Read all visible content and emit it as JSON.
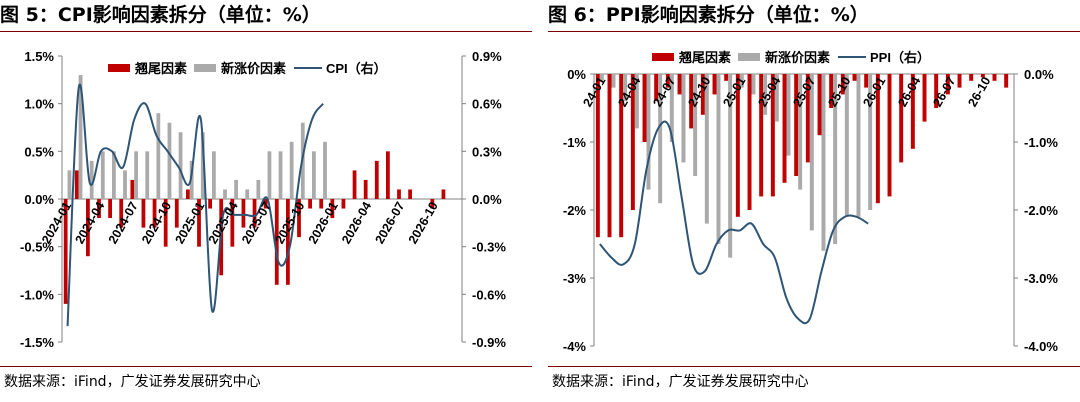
{
  "colors": {
    "title_rule": "#7a0000",
    "carryover": "#c00000",
    "new_factor": "#aaaaaa",
    "line": "#2e5576",
    "axis": "#808080"
  },
  "charts": [
    {
      "title": "图 5：CPI影响因素拆分（单位：%）",
      "source": "数据来源：iFind，广发证券发展研究中心",
      "legend": [
        "翘尾因素",
        "新涨价因素",
        "CPI（右）"
      ]
    },
    {
      "title": "图 6：PPI影响因素拆分（单位：%）",
      "source": "数据来源：iFind，广发证券发展研究中心",
      "legend": [
        "翘尾因素",
        "新涨价因素",
        "PPI（右）"
      ]
    }
  ],
  "chart_data": [
    {
      "type": "bar",
      "title": "图 5：CPI影响因素拆分（单位：%）",
      "categories": [
        "2024-01",
        "2024-02",
        "2024-03",
        "2024-04",
        "2024-05",
        "2024-06",
        "2024-07",
        "2024-08",
        "2024-09",
        "2024-10",
        "2024-11",
        "2024-12",
        "2025-01",
        "2025-02",
        "2025-03",
        "2025-04",
        "2025-05",
        "2025-06",
        "2025-07",
        "2025-08",
        "2025-09",
        "2025-10",
        "2025-11",
        "2025-12",
        "2026-01",
        "2026-02",
        "2026-03",
        "2026-04",
        "2026-05",
        "2026-06",
        "2026-07",
        "2026-08",
        "2026-09",
        "2026-10",
        "2026-11",
        "2026-12"
      ],
      "tick_labels": [
        "2024-01",
        "2024-04",
        "2024-07",
        "2024-10",
        "2025-01",
        "2025-04",
        "2025-07",
        "2025-10",
        "2026-01",
        "2026-04",
        "2026-07",
        "2026-10"
      ],
      "tick_every": 3,
      "series": [
        {
          "name": "翘尾因素",
          "type": "bar",
          "axis": "left",
          "color": "#c00000",
          "values": [
            -1.1,
            0.3,
            -0.6,
            -0.2,
            -0.2,
            -0.3,
            0.2,
            -0.3,
            -0.3,
            -0.5,
            -0.3,
            0.1,
            -0.5,
            -0.1,
            -0.8,
            -0.5,
            -0.3,
            -0.3,
            -0.1,
            -0.9,
            -0.9,
            -0.4,
            -0.1,
            -0.1,
            -0.2,
            -0.1,
            0.3,
            0.2,
            0.4,
            0.5,
            0.1,
            0.1,
            0.0,
            -0.1,
            0.1,
            0.0
          ]
        },
        {
          "name": "新涨价因素",
          "type": "bar",
          "axis": "left",
          "color": "#aaaaaa",
          "values": [
            0.3,
            1.3,
            0.4,
            0.5,
            0.5,
            0.3,
            0.5,
            0.5,
            0.9,
            0.8,
            0.7,
            0.4,
            0.7,
            0.5,
            0.1,
            0.2,
            0.1,
            0.2,
            0.5,
            0.5,
            0.6,
            0.8,
            0.5,
            0.6,
            null,
            null,
            null,
            null,
            null,
            null,
            null,
            null,
            null,
            null,
            null,
            null
          ]
        },
        {
          "name": "CPI（右）",
          "type": "line",
          "axis": "right",
          "color": "#2e5576",
          "values": [
            -0.8,
            0.7,
            0.1,
            0.3,
            0.3,
            0.2,
            0.5,
            0.6,
            0.4,
            0.3,
            0.2,
            0.1,
            0.5,
            -0.7,
            -0.1,
            -0.1,
            -0.1,
            -0.1,
            0.0,
            -0.4,
            -0.3,
            0.2,
            0.5,
            0.6,
            null,
            null,
            null,
            null,
            null,
            null,
            null,
            null,
            null,
            null,
            null,
            null
          ]
        }
      ],
      "y_left": {
        "lim": [
          -1.5,
          1.5
        ],
        "ticks": [
          "-1.5%",
          "-1.0%",
          "-0.5%",
          "0.0%",
          "0.5%",
          "1.0%",
          "1.5%"
        ]
      },
      "y_right": {
        "lim": [
          -0.9,
          0.9
        ],
        "ticks": [
          "-0.9%",
          "-0.6%",
          "-0.3%",
          "0.0%",
          "0.3%",
          "0.6%",
          "0.9%"
        ]
      }
    },
    {
      "type": "bar",
      "title": "图 6：PPI影响因素拆分（单位：%）",
      "categories": [
        "24-01",
        "24-02",
        "24-03",
        "24-04",
        "24-05",
        "24-06",
        "24-07",
        "24-08",
        "24-09",
        "24-10",
        "24-11",
        "24-12",
        "25-01",
        "25-02",
        "25-03",
        "25-04",
        "25-05",
        "25-06",
        "25-07",
        "25-08",
        "25-09",
        "25-10",
        "25-11",
        "25-12",
        "26-01",
        "26-02",
        "26-03",
        "26-04",
        "26-05",
        "26-06",
        "26-07",
        "26-08",
        "26-09",
        "26-10",
        "26-11",
        "26-12"
      ],
      "tick_labels": [
        "24-01",
        "24-04",
        "24-07",
        "24-10",
        "25-01",
        "25-04",
        "25-07",
        "25-10",
        "26-01",
        "26-04",
        "26-07",
        "26-10"
      ],
      "tick_every": 3,
      "series": [
        {
          "name": "翘尾因素",
          "type": "bar",
          "axis": "left",
          "color": "#c00000",
          "values": [
            -2.4,
            -2.4,
            -2.4,
            -2.0,
            -1.0,
            -0.4,
            -0.2,
            -0.3,
            -0.8,
            -0.6,
            -0.3,
            -0.1,
            -2.1,
            -2.0,
            -1.8,
            -1.8,
            -1.6,
            -1.5,
            -1.3,
            -0.9,
            -0.5,
            -0.3,
            -0.1,
            -0.2,
            -1.9,
            -1.8,
            -1.3,
            -1.1,
            -0.7,
            -0.5,
            -0.3,
            -0.2,
            -0.1,
            -0.05,
            -0.1,
            -0.2
          ]
        },
        {
          "name": "新涨价因素",
          "type": "bar",
          "axis": "left",
          "color": "#aaaaaa",
          "values": [
            -0.1,
            -0.2,
            -0.4,
            -0.8,
            -1.7,
            -1.9,
            -1.0,
            -1.3,
            -1.5,
            -2.2,
            -2.5,
            -2.7,
            -0.2,
            -0.3,
            -0.6,
            -0.7,
            -1.2,
            -1.7,
            -2.3,
            -2.6,
            -2.5,
            -2.1,
            -2.1,
            -2.0,
            null,
            null,
            null,
            null,
            null,
            null,
            null,
            null,
            null,
            null,
            null,
            null
          ]
        },
        {
          "name": "PPI（右）",
          "type": "line",
          "axis": "right",
          "color": "#2e5576",
          "values": [
            -2.5,
            -2.7,
            -2.8,
            -2.5,
            -1.4,
            -0.8,
            -0.8,
            -1.8,
            -2.8,
            -2.9,
            -2.5,
            -2.3,
            -2.3,
            -2.2,
            -2.5,
            -2.7,
            -3.3,
            -3.6,
            -3.6,
            -2.9,
            -2.3,
            -2.1,
            -2.1,
            -2.2,
            null,
            null,
            null,
            null,
            null,
            null,
            null,
            null,
            null,
            null,
            null,
            null
          ]
        }
      ],
      "y_left": {
        "lim": [
          -4,
          0
        ],
        "ticks": [
          "-4%",
          "-3%",
          "-2%",
          "-1%",
          "0%"
        ]
      },
      "y_right": {
        "lim": [
          -4,
          0
        ],
        "ticks": [
          "-4.0%",
          "-3.0%",
          "-2.0%",
          "-1.0%",
          "0.0%"
        ]
      }
    }
  ]
}
